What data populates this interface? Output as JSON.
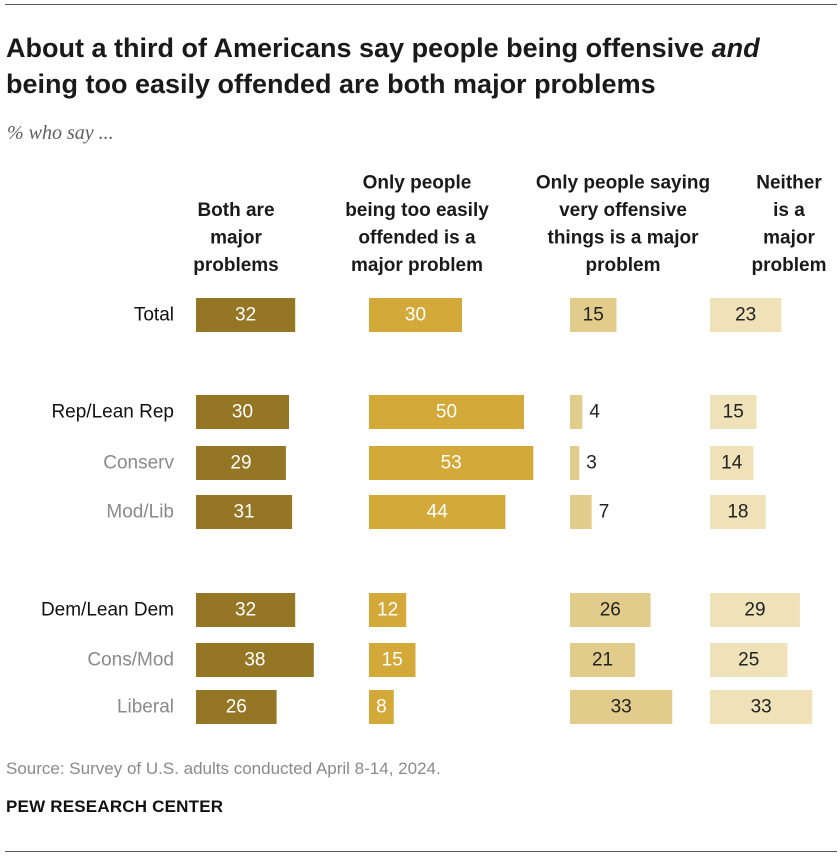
{
  "title_html": "About a third of Americans say people being offensive <em>and</em> being too easily offended are both major problems",
  "subtitle": "% who say ...",
  "source": "Source: Survey of U.S. adults conducted April 8-14, 2024.",
  "brand": "PEW RESEARCH CENTER",
  "chart_data": {
    "type": "bar",
    "orientation": "horizontal",
    "layout": "small-multiples",
    "columns": [
      {
        "name": "Both are major problems",
        "header_lines": [
          "Both are",
          "major",
          "problems"
        ],
        "color": "#947625"
      },
      {
        "name": "Only people being too easily offended is a major problem",
        "header_lines": [
          "Only people",
          "being too easily",
          "offended is a",
          "major problem"
        ],
        "color": "#d3a93a"
      },
      {
        "name": "Only people saying very offensive things is a major problem",
        "header_lines": [
          "Only people saying",
          "very offensive",
          "things is a major",
          "problem"
        ],
        "color": "#e2cc8b"
      },
      {
        "name": "Neither is a major problem",
        "header_lines": [
          "Neither",
          "is a",
          "major",
          "problem"
        ],
        "color": "#efe2b8"
      }
    ],
    "categories": [
      "Total",
      "Rep/Lean Rep",
      "Conserv",
      "Mod/Lib",
      "Dem/Lean Dem",
      "Cons/Mod",
      "Liberal"
    ],
    "category_style": [
      "main",
      "main",
      "sub",
      "sub",
      "main",
      "sub",
      "sub"
    ],
    "series": [
      {
        "name": "Both are major problems",
        "values": [
          32,
          30,
          29,
          31,
          32,
          38,
          26
        ]
      },
      {
        "name": "Only people being too easily offended is a major problem",
        "values": [
          30,
          50,
          53,
          44,
          12,
          15,
          8
        ]
      },
      {
        "name": "Only people saying very offensive things is a major problem",
        "values": [
          15,
          4,
          3,
          7,
          26,
          21,
          33
        ]
      },
      {
        "name": "Neither is a major problem",
        "values": [
          23,
          15,
          14,
          18,
          29,
          25,
          33
        ]
      }
    ],
    "label_colors": {
      "dark_bar_text": "#ffffff",
      "light_bar_text": "#222222",
      "main_category": "#111111",
      "sub_category": "#8a8a8a"
    }
  }
}
